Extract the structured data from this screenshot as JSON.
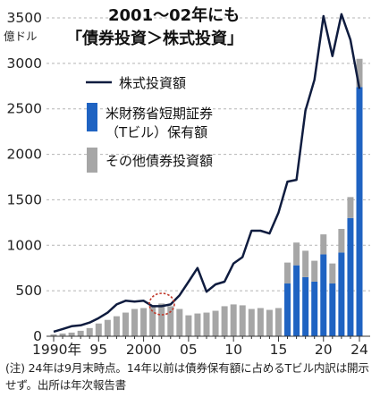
{
  "chart_data": {
    "type": "bar+line",
    "title_line1": "2001～02年にも",
    "title_line2": "「債券投資＞株式投資」",
    "y_unit": "億ドル",
    "ylim": [
      0,
      3500
    ],
    "y_ticks": [
      "0",
      "500",
      "1000",
      "1500",
      "2000",
      "2500",
      "3000",
      "3500"
    ],
    "x_tick_labels": [
      {
        "year": 1990,
        "label": "1990年"
      },
      {
        "year": 1995,
        "label": "95"
      },
      {
        "year": 2000,
        "label": "2000"
      },
      {
        "year": 2005,
        "label": "05"
      },
      {
        "year": 2010,
        "label": "10"
      },
      {
        "year": 2015,
        "label": "15"
      },
      {
        "year": 2020,
        "label": "20"
      },
      {
        "year": 2024,
        "label": "24"
      }
    ],
    "legend": {
      "line": "株式投資額",
      "blue_line1": "米財務省短期証券",
      "blue_line2": "（Tビル）保有額",
      "gray": "その他債券投資額"
    },
    "colors": {
      "line": "#0f1c3f",
      "tbill": "#1f63c2",
      "other_bonds": "#a6a6a6"
    },
    "years": [
      1990,
      1991,
      1992,
      1993,
      1994,
      1995,
      1996,
      1997,
      1998,
      1999,
      2000,
      2001,
      2002,
      2003,
      2004,
      2005,
      2006,
      2007,
      2008,
      2009,
      2010,
      2011,
      2012,
      2013,
      2014,
      2015,
      2016,
      2017,
      2018,
      2019,
      2020,
      2021,
      2022,
      2023,
      2024
    ],
    "series": [
      {
        "name": "株式投資額",
        "type": "line",
        "values": [
          50,
          80,
          110,
          120,
          150,
          200,
          260,
          350,
          390,
          380,
          390,
          330,
          330,
          350,
          450,
          600,
          750,
          490,
          570,
          600,
          800,
          870,
          1160,
          1160,
          1130,
          1360,
          1700,
          1720,
          2480,
          2820,
          3520,
          3080,
          3540,
          3260,
          2720
        ]
      },
      {
        "name": "米財務省短期証券（Tビル）保有額",
        "type": "bar",
        "values": [
          0,
          0,
          0,
          0,
          0,
          0,
          0,
          0,
          0,
          0,
          0,
          0,
          0,
          0,
          0,
          0,
          0,
          0,
          0,
          0,
          0,
          0,
          0,
          0,
          0,
          0,
          580,
          780,
          650,
          600,
          900,
          580,
          920,
          1300,
          2740
        ]
      },
      {
        "name": "その他債券投資額",
        "type": "bar",
        "values": [
          20,
          30,
          40,
          60,
          90,
          140,
          180,
          220,
          260,
          300,
          310,
          330,
          360,
          330,
          300,
          230,
          250,
          260,
          280,
          330,
          350,
          340,
          300,
          310,
          290,
          310,
          230,
          250,
          290,
          230,
          220,
          220,
          260,
          230,
          310
        ]
      }
    ],
    "annotation": "circle around 2001–2002",
    "grid": "dashed horizontal lines at each y tick"
  },
  "note": "(注) 24年は9月末時点。14年以前は債券保有額に占めるTビル内訳は開示せず。出所は年次報告書"
}
